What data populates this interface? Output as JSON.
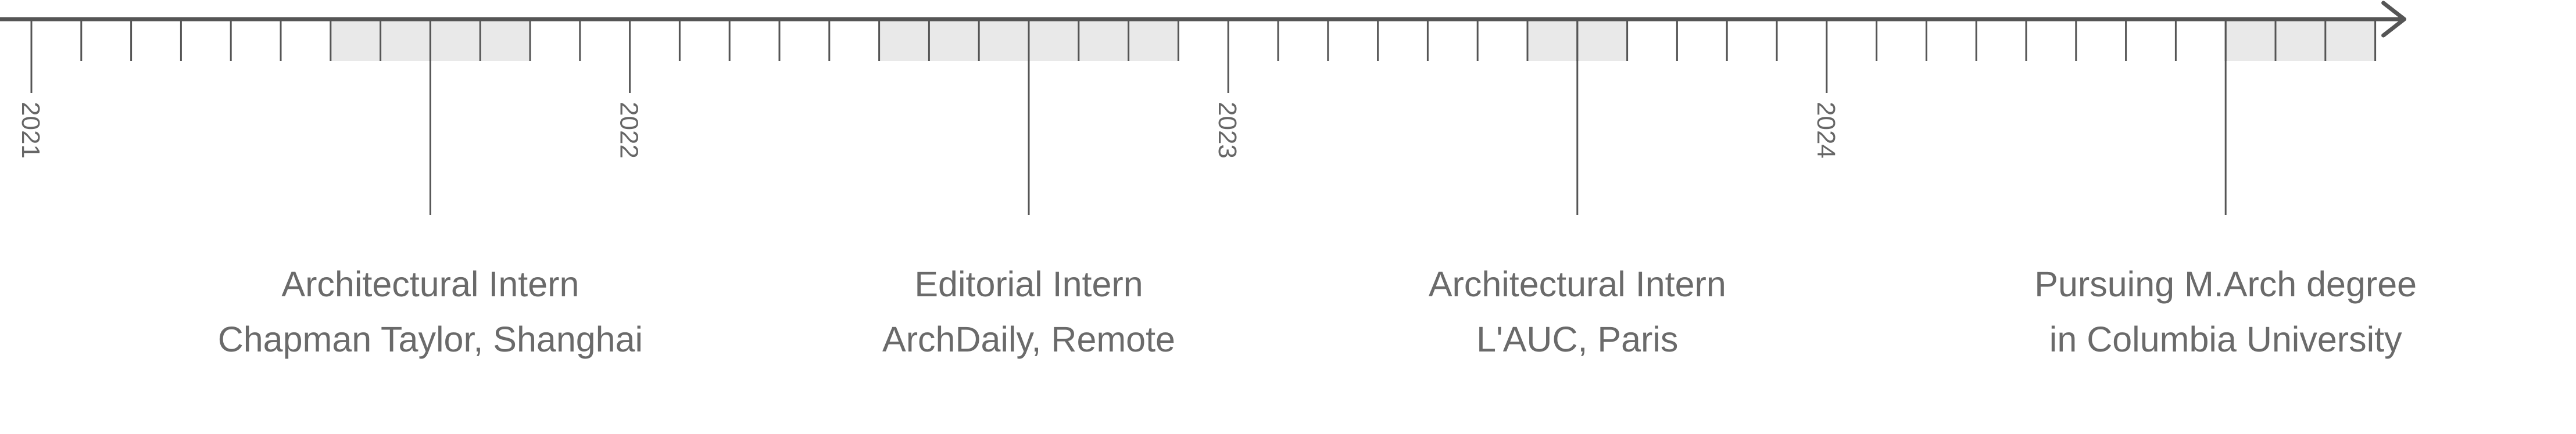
{
  "timeline": {
    "start": "2021-01",
    "end": "2024-12",
    "axis_color": "#555555",
    "tick_color": "#555555",
    "highlight_color": "#e9e9e9",
    "text_color": "#6a6a6a",
    "years": [
      "2021",
      "2022",
      "2023",
      "2024"
    ],
    "periods": [
      {
        "start": "2021-07",
        "end": "2021-11"
      },
      {
        "start": "2022-06",
        "end": "2022-12"
      },
      {
        "start": "2023-07",
        "end": "2023-09"
      },
      {
        "start": "2024-09",
        "end": "2024-12"
      }
    ],
    "events": [
      {
        "date": "2021-09",
        "line1": "Architectural Intern",
        "line2": "Chapman Taylor, Shanghai"
      },
      {
        "date": "2022-09",
        "line1": "Editorial Intern",
        "line2": "ArchDaily, Remote"
      },
      {
        "date": "2023-08",
        "line1": "Architectural Intern",
        "line2": "L'AUC, Paris"
      },
      {
        "date": "2024-09",
        "line1": "Pursuing M.Arch degree",
        "line2": "in Columbia University"
      }
    ]
  }
}
